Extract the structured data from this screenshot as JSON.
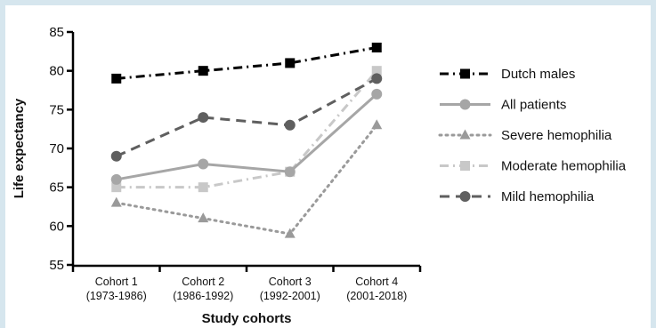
{
  "chart_data": {
    "type": "line",
    "title": "",
    "xlabel": "Study cohorts",
    "ylabel": "Life expectancy",
    "ylim": [
      55,
      85
    ],
    "yticks": [
      55,
      60,
      65,
      70,
      75,
      80,
      85
    ],
    "grid": false,
    "legend_position": "right",
    "categories": [
      {
        "line1": "Cohort 1",
        "line2": "(1973-1986)"
      },
      {
        "line1": "Cohort 2",
        "line2": "(1986-1992)"
      },
      {
        "line1": "Cohort 3",
        "line2": "(1992-2001)"
      },
      {
        "line1": "Cohort 4",
        "line2": "(2001-2018)"
      }
    ],
    "series": [
      {
        "name": "Dutch males",
        "values": [
          79,
          80,
          81,
          83
        ],
        "color": "#000000",
        "marker": "square",
        "dash": "dashdot"
      },
      {
        "name": "All patients",
        "values": [
          66,
          68,
          67,
          77
        ],
        "color": "#a6a6a6",
        "marker": "circle",
        "dash": "solid"
      },
      {
        "name": "Severe hemophilia",
        "values": [
          63,
          61,
          59,
          73
        ],
        "color": "#9a9a9a",
        "marker": "triangle",
        "dash": "dotted"
      },
      {
        "name": "Moderate hemophilia",
        "values": [
          65,
          65,
          67,
          80
        ],
        "color": "#c8c8c8",
        "marker": "square",
        "dash": "dashdot"
      },
      {
        "name": "Mild hemophilia",
        "values": [
          69,
          74,
          73,
          79
        ],
        "color": "#5f5f5f",
        "marker": "circle",
        "dash": "dashed"
      }
    ]
  }
}
